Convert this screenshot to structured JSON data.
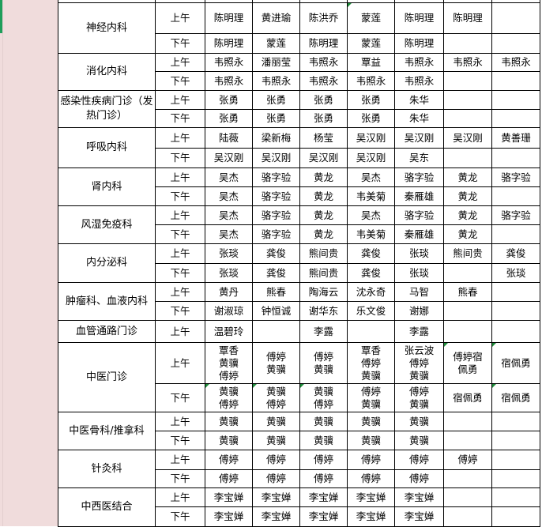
{
  "sheet": {
    "accent_color": "#1e9e5a",
    "sidebar_color": "#f0dcdc",
    "departments": [
      {
        "name": "神经内科",
        "rows": [
          {
            "session": "上午",
            "cells": [
              "陈明理",
              "黄进瑜",
              "陈洪乔",
              "蒙莲",
              "陈明理",
              "陈明理",
              ""
            ]
          },
          {
            "session": "下午",
            "cells": [
              "陈明理",
              "蒙莲",
              "陈明理",
              "蒙莲",
              "陈明理",
              "",
              ""
            ]
          }
        ]
      },
      {
        "name": "消化内科",
        "rows": [
          {
            "session": "上午",
            "cells": [
              "韦照永",
              "潘丽莹",
              "韦照永",
              "覃益",
              "韦照永",
              "韦照永",
              "韦照永"
            ]
          },
          {
            "session": "下午",
            "cells": [
              "韦照永",
              "韦照永",
              "韦照永",
              "韦照永",
              "韦照永",
              "",
              ""
            ]
          }
        ]
      },
      {
        "name": "感染性疾病门诊（发热门诊）",
        "rows": [
          {
            "session": "上午",
            "cells": [
              "张勇",
              "张勇",
              "张勇",
              "张勇",
              "朱华",
              "",
              ""
            ]
          },
          {
            "session": "下午",
            "cells": [
              "张勇",
              "张勇",
              "张勇",
              "张勇",
              "朱华",
              "",
              ""
            ]
          }
        ]
      },
      {
        "name": "呼吸内科",
        "rows": [
          {
            "session": "上午",
            "cells": [
              "陆薇",
              "梁新梅",
              "杨莹",
              "吴汉刚",
              "吴汉刚",
              "吴汉刚",
              "黄善珊"
            ]
          },
          {
            "session": "下午",
            "cells": [
              "吴汉刚",
              "吴汉刚",
              "吴汉刚",
              "吴汉刚",
              "吴东",
              "",
              ""
            ]
          }
        ]
      },
      {
        "name": "肾内科",
        "rows": [
          {
            "session": "上午",
            "cells": [
              "吴杰",
              "骆字验",
              "黄龙",
              "吴杰",
              "骆字验",
              "黄龙",
              "骆字验"
            ]
          },
          {
            "session": "下午",
            "cells": [
              "吴杰",
              "骆字验",
              "黄龙",
              "韦美菊",
              "秦雁雄",
              "黄龙",
              ""
            ]
          }
        ]
      },
      {
        "name": "风湿免疫科",
        "rows": [
          {
            "session": "上午",
            "cells": [
              "吴杰",
              "骆字验",
              "黄龙",
              "吴杰",
              "骆字验",
              "黄龙",
              "骆字验"
            ]
          },
          {
            "session": "下午",
            "cells": [
              "吴杰",
              "骆字验",
              "黄龙",
              "韦美菊",
              "秦雁雄",
              "黄龙",
              ""
            ]
          }
        ]
      },
      {
        "name": "内分泌科",
        "rows": [
          {
            "session": "上午",
            "cells": [
              "张琰",
              "龚俊",
              "熊间贵",
              "龚俊",
              "张琰",
              "熊间贵",
              "龚俊"
            ]
          },
          {
            "session": "下午",
            "cells": [
              "张琰",
              "龚俊",
              "熊间贵",
              "龚俊",
              "张琰",
              "",
              "张琰"
            ]
          }
        ]
      },
      {
        "name": "肿瘤科、血液内科",
        "rows": [
          {
            "session": "上午",
            "cells": [
              "黄丹",
              "熊春",
              "陶海云",
              "沈永奇",
              "马智",
              "熊春",
              ""
            ]
          },
          {
            "session": "下午",
            "cells": [
              "谢淑琼",
              "钟恒诚",
              "谢华东",
              "乐文俊",
              "谢娜",
              "",
              ""
            ]
          }
        ]
      },
      {
        "name": "血管通路门诊",
        "rows": [
          {
            "session": "上午",
            "cells": [
              "温碧玲",
              "",
              "李露",
              "",
              "李露",
              "",
              ""
            ]
          }
        ]
      },
      {
        "name": "中医门诊",
        "rows": [
          {
            "session": "上午",
            "cells": [
              "覃香\n黄骥\n傅婷",
              "傅婷\n黄骥",
              "傅婷\n黄骥",
              "覃香\n傅婷\n黄骥",
              "张云波\n傅婷\n黄骥",
              "傅婷宿\n佩勇",
              "宿佩勇"
            ]
          },
          {
            "session": "下午",
            "cells": [
              "黄骥\n傅婷",
              "黄骥\n傅婷",
              "黄骥\n傅婷",
              "傅婷\n黄骥",
              "傅婷\n黄骥",
              "宿佩勇",
              "宿佩勇"
            ]
          }
        ]
      },
      {
        "name": "中医骨科/推拿科",
        "rows": [
          {
            "session": "上午",
            "cells": [
              "黄骥",
              "黄骥",
              "黄骥",
              "黄骥",
              "黄骥",
              "",
              ""
            ]
          },
          {
            "session": "下午",
            "cells": [
              "黄骥",
              "黄骥",
              "黄骥",
              "黄骥",
              "黄骥",
              "",
              ""
            ]
          }
        ]
      },
      {
        "name": "针灸科",
        "rows": [
          {
            "session": "上午",
            "cells": [
              "傅婷",
              "傅婷",
              "傅婷",
              "傅婷",
              "傅婷",
              "傅婷",
              ""
            ]
          },
          {
            "session": "下午",
            "cells": [
              "傅婷",
              "傅婷",
              "傅婷",
              "傅婷",
              "傅婷",
              "",
              ""
            ]
          }
        ]
      },
      {
        "name": "中西医结合",
        "rows": [
          {
            "session": "上午",
            "cells": [
              "李宝婵",
              "李宝婵",
              "李宝婵",
              "李宝婵",
              "李宝婵",
              "",
              ""
            ]
          },
          {
            "session": "下午",
            "cells": [
              "李宝婵",
              "李宝婵",
              "李宝婵",
              "李宝婵",
              "李宝婵",
              "",
              ""
            ]
          }
        ]
      }
    ]
  }
}
